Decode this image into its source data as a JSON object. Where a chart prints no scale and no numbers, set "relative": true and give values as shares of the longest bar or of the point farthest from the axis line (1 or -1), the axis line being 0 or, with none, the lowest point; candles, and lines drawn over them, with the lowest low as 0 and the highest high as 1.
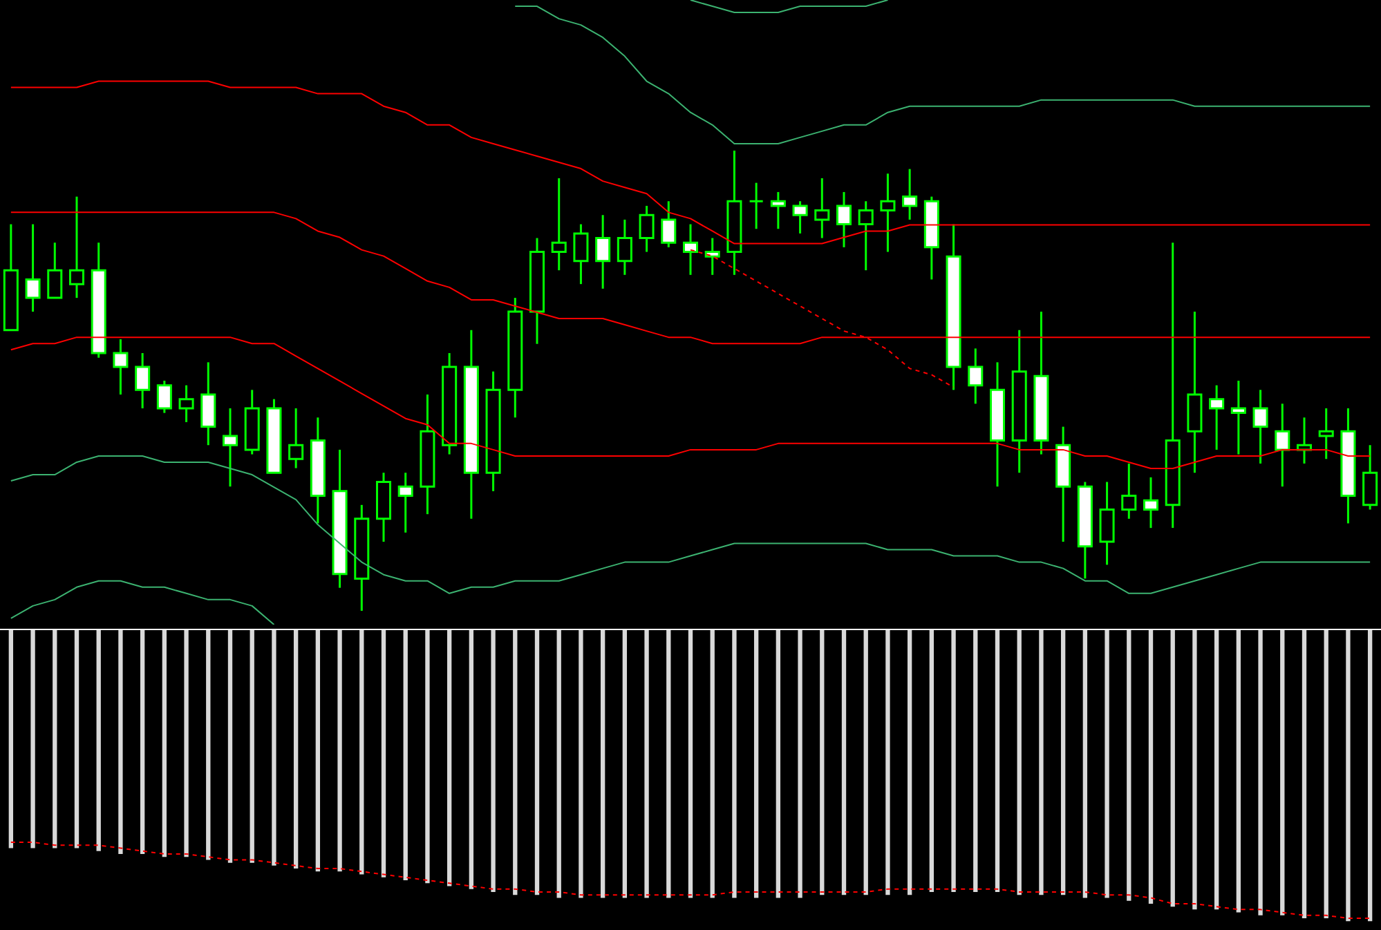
{
  "chart_data": [
    {
      "type": "candlestick",
      "relative": true,
      "tick_labels": false,
      "color": "#00ff00",
      "categories": [
        null,
        null,
        null,
        null,
        null,
        null,
        null,
        null,
        null,
        null,
        null,
        null,
        null,
        null,
        null,
        null,
        null,
        null,
        null,
        null,
        null,
        null,
        null,
        null,
        null,
        null,
        null,
        null,
        null,
        null,
        null,
        null,
        null,
        null,
        null,
        null,
        null,
        null,
        null,
        null,
        null,
        null,
        null,
        null,
        null,
        null,
        null,
        null,
        null,
        null,
        null,
        null,
        null,
        null,
        null,
        null,
        null,
        null,
        null,
        null,
        null,
        null,
        null
      ],
      "ohlc": [
        [
          0.61,
          0.84,
          0.61,
          0.74
        ],
        [
          0.72,
          0.84,
          0.65,
          0.68
        ],
        [
          0.68,
          0.8,
          0.68,
          0.74
        ],
        [
          0.71,
          0.9,
          0.68,
          0.74
        ],
        [
          0.74,
          0.8,
          0.55,
          0.56
        ],
        [
          0.56,
          0.59,
          0.47,
          0.53
        ],
        [
          0.53,
          0.56,
          0.44,
          0.48
        ],
        [
          0.49,
          0.5,
          0.43,
          0.44
        ],
        [
          0.44,
          0.49,
          0.41,
          0.46
        ],
        [
          0.47,
          0.54,
          0.36,
          0.4
        ],
        [
          0.38,
          0.44,
          0.27,
          0.36
        ],
        [
          0.35,
          0.48,
          0.34,
          0.44
        ],
        [
          0.44,
          0.46,
          0.3,
          0.3
        ],
        [
          0.33,
          0.44,
          0.31,
          0.36
        ],
        [
          0.37,
          0.42,
          0.19,
          0.25
        ],
        [
          0.26,
          0.35,
          0.05,
          0.08
        ],
        [
          0.07,
          0.23,
          0,
          0.2
        ],
        [
          0.2,
          0.3,
          0.15,
          0.28
        ],
        [
          0.27,
          0.3,
          0.17,
          0.25
        ],
        [
          0.27,
          0.47,
          0.21,
          0.39
        ],
        [
          0.36,
          0.56,
          0.34,
          0.53
        ],
        [
          0.53,
          0.61,
          0.2,
          0.3
        ],
        [
          0.3,
          0.52,
          0.26,
          0.48
        ],
        [
          0.48,
          0.68,
          0.42,
          0.65
        ],
        [
          0.65,
          0.81,
          0.58,
          0.78
        ],
        [
          0.78,
          0.94,
          0.74,
          0.8
        ],
        [
          0.76,
          0.84,
          0.71,
          0.82
        ],
        [
          0.81,
          0.86,
          0.7,
          0.76
        ],
        [
          0.76,
          0.85,
          0.73,
          0.81
        ],
        [
          0.81,
          0.88,
          0.78,
          0.86
        ],
        [
          0.85,
          0.89,
          0.79,
          0.8
        ],
        [
          0.8,
          0.84,
          0.73,
          0.78
        ],
        [
          0.78,
          0.81,
          0.73,
          0.77
        ],
        [
          0.78,
          1,
          0.73,
          0.89
        ],
        [
          0.89,
          0.93,
          0.83,
          0.89
        ],
        [
          0.89,
          0.91,
          0.83,
          0.88
        ],
        [
          0.88,
          0.89,
          0.82,
          0.86
        ],
        [
          0.85,
          0.94,
          0.81,
          0.87
        ],
        [
          0.88,
          0.91,
          0.79,
          0.84
        ],
        [
          0.84,
          0.89,
          0.74,
          0.87
        ],
        [
          0.87,
          0.95,
          0.78,
          0.89
        ],
        [
          0.9,
          0.96,
          0.85,
          0.88
        ],
        [
          0.89,
          0.9,
          0.72,
          0.79
        ],
        [
          0.77,
          0.84,
          0.48,
          0.53
        ],
        [
          0.53,
          0.57,
          0.45,
          0.49
        ],
        [
          0.48,
          0.54,
          0.27,
          0.37
        ],
        [
          0.37,
          0.61,
          0.3,
          0.52
        ],
        [
          0.51,
          0.65,
          0.34,
          0.37
        ],
        [
          0.36,
          0.4,
          0.15,
          0.27
        ],
        [
          0.27,
          0.28,
          0.07,
          0.14
        ],
        [
          0.15,
          0.28,
          0.1,
          0.22
        ],
        [
          0.22,
          0.32,
          0.2,
          0.25
        ],
        [
          0.24,
          0.29,
          0.18,
          0.22
        ],
        [
          0.23,
          0.8,
          0.18,
          0.37
        ],
        [
          0.39,
          0.65,
          0.3,
          0.47
        ],
        [
          0.46,
          0.49,
          0.35,
          0.44
        ],
        [
          0.44,
          0.5,
          0.34,
          0.43
        ],
        [
          0.44,
          0.48,
          0.32,
          0.4
        ],
        [
          0.39,
          0.45,
          0.27,
          0.35
        ],
        [
          0.35,
          0.42,
          0.32,
          0.36
        ],
        [
          0.38,
          0.44,
          0.33,
          0.39
        ],
        [
          0.39,
          0.44,
          0.19,
          0.25
        ],
        [
          0.23,
          0.36,
          0.22,
          0.3
        ]
      ],
      "colors": [
        "#000000",
        "#ffffff",
        "#000000",
        "#000000",
        "#ffffff",
        "#ffffff",
        "#ffffff",
        "#ffffff",
        "#000000",
        "#ffffff",
        "#ffffff",
        "#000000",
        "#ffffff",
        "#000000",
        "#ffffff",
        "#ffffff",
        "#000000",
        "#000000",
        "#ffffff",
        "#000000",
        "#000000",
        "#ffffff",
        "#000000",
        "#000000",
        "#000000",
        "#000000",
        "#000000",
        "#ffffff",
        "#000000",
        "#000000",
        "#ffffff",
        "#ffffff",
        "#ffffff",
        "#000000",
        "#00ff00",
        "#ffffff",
        "#ffffff",
        "#000000",
        "#ffffff",
        "#000000",
        "#000000",
        "#ffffff",
        "#ffffff",
        "#ffffff",
        "#ffffff",
        "#ffffff",
        "#000000",
        "#ffffff",
        "#ffffff",
        "#ffffff",
        "#000000",
        "#000000",
        "#ffffff",
        "#000000",
        "#000000",
        "#ffffff",
        "#ffffff",
        "#ffffff",
        "#ffffff",
        "#000000",
        "#000000",
        "#ffffff",
        "#000000"
      ]
    },
    {
      "type": "line",
      "relative": true,
      "tick_labels": false,
      "categories": [
        null,
        null,
        null,
        null,
        null,
        null,
        null,
        null,
        null,
        null,
        null,
        null,
        null,
        null,
        null,
        null,
        null,
        null,
        null,
        null,
        null,
        null,
        null,
        null,
        null,
        null,
        null,
        null,
        null,
        null,
        null,
        null,
        null,
        null,
        null,
        null,
        null,
        null,
        null,
        null,
        null,
        null,
        null,
        null,
        null,
        null,
        null,
        null,
        null,
        null,
        null,
        null,
        null,
        null,
        null,
        null,
        null,
        null,
        null,
        null,
        null,
        null,
        null
      ],
      "series": [
        {
          "color": "#ff0000",
          "values": [
            0.86,
            0.86,
            0.86,
            0.86,
            0.87,
            0.87,
            0.87,
            0.87,
            0.87,
            0.87,
            0.86,
            0.86,
            0.86,
            0.86,
            0.85,
            0.85,
            0.85,
            0.83,
            0.82,
            0.8,
            0.8,
            0.78,
            0.77,
            0.76,
            0.75,
            0.74,
            0.73,
            0.71,
            0.7,
            0.69,
            0.66,
            0.65,
            0.63,
            0.61,
            0.61,
            0.61,
            0.61,
            0.61,
            0.62,
            0.63,
            0.63,
            0.64,
            0.64,
            0.64,
            0.64,
            0.64,
            0.64,
            0.64,
            0.64,
            0.64,
            0.64,
            0.64,
            0.64,
            0.64,
            0.64,
            0.64,
            0.64,
            0.64,
            0.64,
            0.64,
            0.64,
            0.64,
            0.64
          ]
        },
        {
          "color": "#ff0000",
          "values": [
            0.66,
            0.66,
            0.66,
            0.66,
            0.66,
            0.66,
            0.66,
            0.66,
            0.66,
            0.66,
            0.66,
            0.66,
            0.66,
            0.65,
            0.63,
            0.62,
            0.6,
            0.59,
            0.57,
            0.55,
            0.54,
            0.52,
            0.52,
            0.51,
            0.5,
            0.49,
            0.49,
            0.49,
            0.48,
            0.47,
            0.46,
            0.46,
            0.45,
            0.45,
            0.45,
            0.45,
            0.45,
            0.46,
            0.46,
            0.46,
            0.46,
            0.46,
            0.46,
            0.46,
            0.46,
            0.46,
            0.46,
            0.46,
            0.46,
            0.46,
            0.46,
            0.46,
            0.46,
            0.46,
            0.46,
            0.46,
            0.46,
            0.46,
            0.46,
            0.46,
            0.46,
            0.46,
            0.46
          ]
        },
        {
          "color": "#ff0000",
          "values": [
            0.44,
            0.45,
            0.45,
            0.46,
            0.46,
            0.46,
            0.46,
            0.46,
            0.46,
            0.46,
            0.46,
            0.45,
            0.45,
            0.43,
            0.41,
            0.39,
            0.37,
            0.35,
            0.33,
            0.32,
            0.29,
            0.29,
            0.28,
            0.27,
            0.27,
            0.27,
            0.27,
            0.27,
            0.27,
            0.27,
            0.27,
            0.28,
            0.28,
            0.28,
            0.28,
            0.29,
            0.29,
            0.29,
            0.29,
            0.29,
            0.29,
            0.29,
            0.29,
            0.29,
            0.29,
            0.29,
            0.28,
            0.28,
            0.28,
            0.27,
            0.27,
            0.26,
            0.25,
            0.25,
            0.26,
            0.27,
            0.27,
            0.27,
            0.28,
            0.28,
            0.28,
            0.27,
            0.27
          ]
        },
        {
          "color": "#3cb371",
          "values": [
            null,
            null,
            null,
            null,
            null,
            null,
            null,
            null,
            null,
            null,
            null,
            null,
            null,
            null,
            null,
            null,
            null,
            null,
            null,
            null,
            null,
            null,
            null,
            0.99,
            0.99,
            0.97,
            0.96,
            0.94,
            0.91,
            0.87,
            0.85,
            0.82,
            0.8,
            0.77,
            0.77,
            0.77,
            0.78,
            0.79,
            0.8,
            0.8,
            0.82,
            0.83,
            0.83,
            0.83,
            0.83,
            0.83,
            0.83,
            0.84,
            0.84,
            0.84,
            0.84,
            0.84,
            0.84,
            0.84,
            0.83,
            0.83,
            0.83,
            0.83,
            0.83,
            0.83,
            0.83,
            0.83,
            0.83
          ]
        },
        {
          "color": "#3cb371",
          "values": [
            null,
            null,
            null,
            null,
            null,
            null,
            null,
            null,
            null,
            null,
            null,
            null,
            null,
            null,
            null,
            null,
            null,
            null,
            null,
            null,
            null,
            null,
            null,
            null,
            null,
            null,
            null,
            null,
            null,
            null,
            null,
            1.0,
            0.99,
            0.98,
            0.98,
            0.98,
            0.99,
            0.99,
            0.99,
            0.99,
            1.0,
            null,
            null,
            null,
            null,
            null,
            null,
            null,
            null,
            null,
            null,
            null,
            null,
            null,
            null,
            null,
            null,
            null,
            null,
            null,
            null,
            null,
            null
          ]
        },
        {
          "color": "#3cb371",
          "values": [
            0.23,
            0.24,
            0.24,
            0.26,
            0.27,
            0.27,
            0.27,
            0.26,
            0.26,
            0.26,
            0.25,
            0.24,
            0.22,
            0.2,
            0.16,
            0.13,
            0.1,
            0.08,
            0.07,
            0.07,
            0.05,
            0.06,
            0.06,
            0.07,
            0.07,
            0.07,
            0.08,
            0.09,
            0.1,
            0.1,
            0.1,
            0.11,
            0.12,
            0.13,
            0.13,
            0.13,
            0.13,
            0.13,
            0.13,
            0.13,
            0.12,
            0.12,
            0.12,
            0.11,
            0.11,
            0.11,
            0.1,
            0.1,
            0.09,
            0.07,
            0.07,
            0.05,
            0.05,
            0.06,
            0.07,
            0.08,
            0.09,
            0.1,
            0.1,
            0.1,
            0.1,
            0.1,
            0.1
          ]
        },
        {
          "color": "#3cb371",
          "values": [
            0.01,
            0.03,
            0.04,
            0.06,
            0.07,
            0.07,
            0.06,
            0.06,
            0.05,
            0.04,
            0.04,
            0.03,
            0,
            null,
            null,
            null,
            null,
            null,
            null,
            null,
            null,
            null,
            null,
            null,
            null,
            null,
            null,
            null,
            null,
            null,
            null,
            null,
            null,
            null,
            null,
            null,
            null,
            null,
            null,
            null,
            null,
            null,
            null,
            null,
            null,
            null,
            null,
            null,
            null,
            null,
            null,
            null,
            null,
            null,
            null,
            null,
            null,
            null,
            null,
            null,
            null,
            null,
            null
          ]
        },
        {
          "color": "#ff0000",
          "line_style": "dashed",
          "values": [
            null,
            null,
            null,
            null,
            null,
            null,
            null,
            null,
            null,
            null,
            null,
            null,
            null,
            null,
            null,
            null,
            null,
            null,
            null,
            null,
            null,
            null,
            null,
            null,
            null,
            null,
            null,
            null,
            null,
            null,
            null,
            0.6,
            0.59,
            0.57,
            0.55,
            0.53,
            0.51,
            0.49,
            0.47,
            0.46,
            0.44,
            0.41,
            0.4,
            0.38,
            null,
            null,
            null,
            null,
            null,
            null,
            null,
            null,
            null,
            null,
            null,
            null,
            null,
            null,
            null,
            null,
            null,
            null,
            null
          ]
        }
      ]
    },
    {
      "type": "bar",
      "relative": true,
      "tick_labels": false,
      "categories": [
        null,
        null,
        null,
        null,
        null,
        null,
        null,
        null,
        null,
        null,
        null,
        null,
        null,
        null,
        null,
        null,
        null,
        null,
        null,
        null,
        null,
        null,
        null,
        null,
        null,
        null,
        null,
        null,
        null,
        null,
        null,
        null,
        null,
        null,
        null,
        null,
        null,
        null,
        null,
        null,
        null,
        null,
        null,
        null,
        null,
        null,
        null,
        null,
        null,
        null,
        null,
        null,
        null,
        null,
        null,
        null,
        null,
        null,
        null,
        null,
        null,
        null,
        null
      ],
      "series": [
        {
          "type": "bar",
          "color": "#d9d9d9",
          "values": [
            -0.75,
            -0.75,
            -0.75,
            -0.75,
            -0.76,
            -0.77,
            -0.77,
            -0.78,
            -0.78,
            -0.79,
            -0.8,
            -0.8,
            -0.81,
            -0.82,
            -0.83,
            -0.83,
            -0.84,
            -0.85,
            -0.86,
            -0.87,
            -0.88,
            -0.89,
            -0.9,
            -0.91,
            -0.91,
            -0.92,
            -0.92,
            -0.92,
            -0.92,
            -0.92,
            -0.92,
            -0.92,
            -0.92,
            -0.92,
            -0.92,
            -0.92,
            -0.92,
            -0.91,
            -0.91,
            -0.91,
            -0.91,
            -0.91,
            -0.9,
            -0.9,
            -0.9,
            -0.9,
            -0.91,
            -0.91,
            -0.91,
            -0.92,
            -0.92,
            -0.93,
            -0.94,
            -0.95,
            -0.96,
            -0.96,
            -0.97,
            -0.98,
            -0.98,
            -0.99,
            -0.99,
            -1,
            -1
          ]
        },
        {
          "type": "line",
          "color": "#ff0000",
          "line_style": "dashed",
          "values": [
            -0.73,
            -0.73,
            -0.74,
            -0.74,
            -0.74,
            -0.75,
            -0.76,
            -0.77,
            -0.77,
            -0.78,
            -0.79,
            -0.79,
            -0.8,
            -0.81,
            -0.82,
            -0.82,
            -0.83,
            -0.84,
            -0.85,
            -0.86,
            -0.87,
            -0.88,
            -0.89,
            -0.89,
            -0.9,
            -0.9,
            -0.91,
            -0.91,
            -0.91,
            -0.91,
            -0.91,
            -0.91,
            -0.91,
            -0.9,
            -0.9,
            -0.9,
            -0.9,
            -0.9,
            -0.9,
            -0.9,
            -0.89,
            -0.89,
            -0.89,
            -0.89,
            -0.89,
            -0.89,
            -0.9,
            -0.9,
            -0.9,
            -0.9,
            -0.91,
            -0.91,
            -0.92,
            -0.94,
            -0.94,
            -0.95,
            -0.96,
            -0.96,
            -0.97,
            -0.98,
            -0.98,
            -0.99,
            -0.99
          ]
        }
      ]
    }
  ]
}
